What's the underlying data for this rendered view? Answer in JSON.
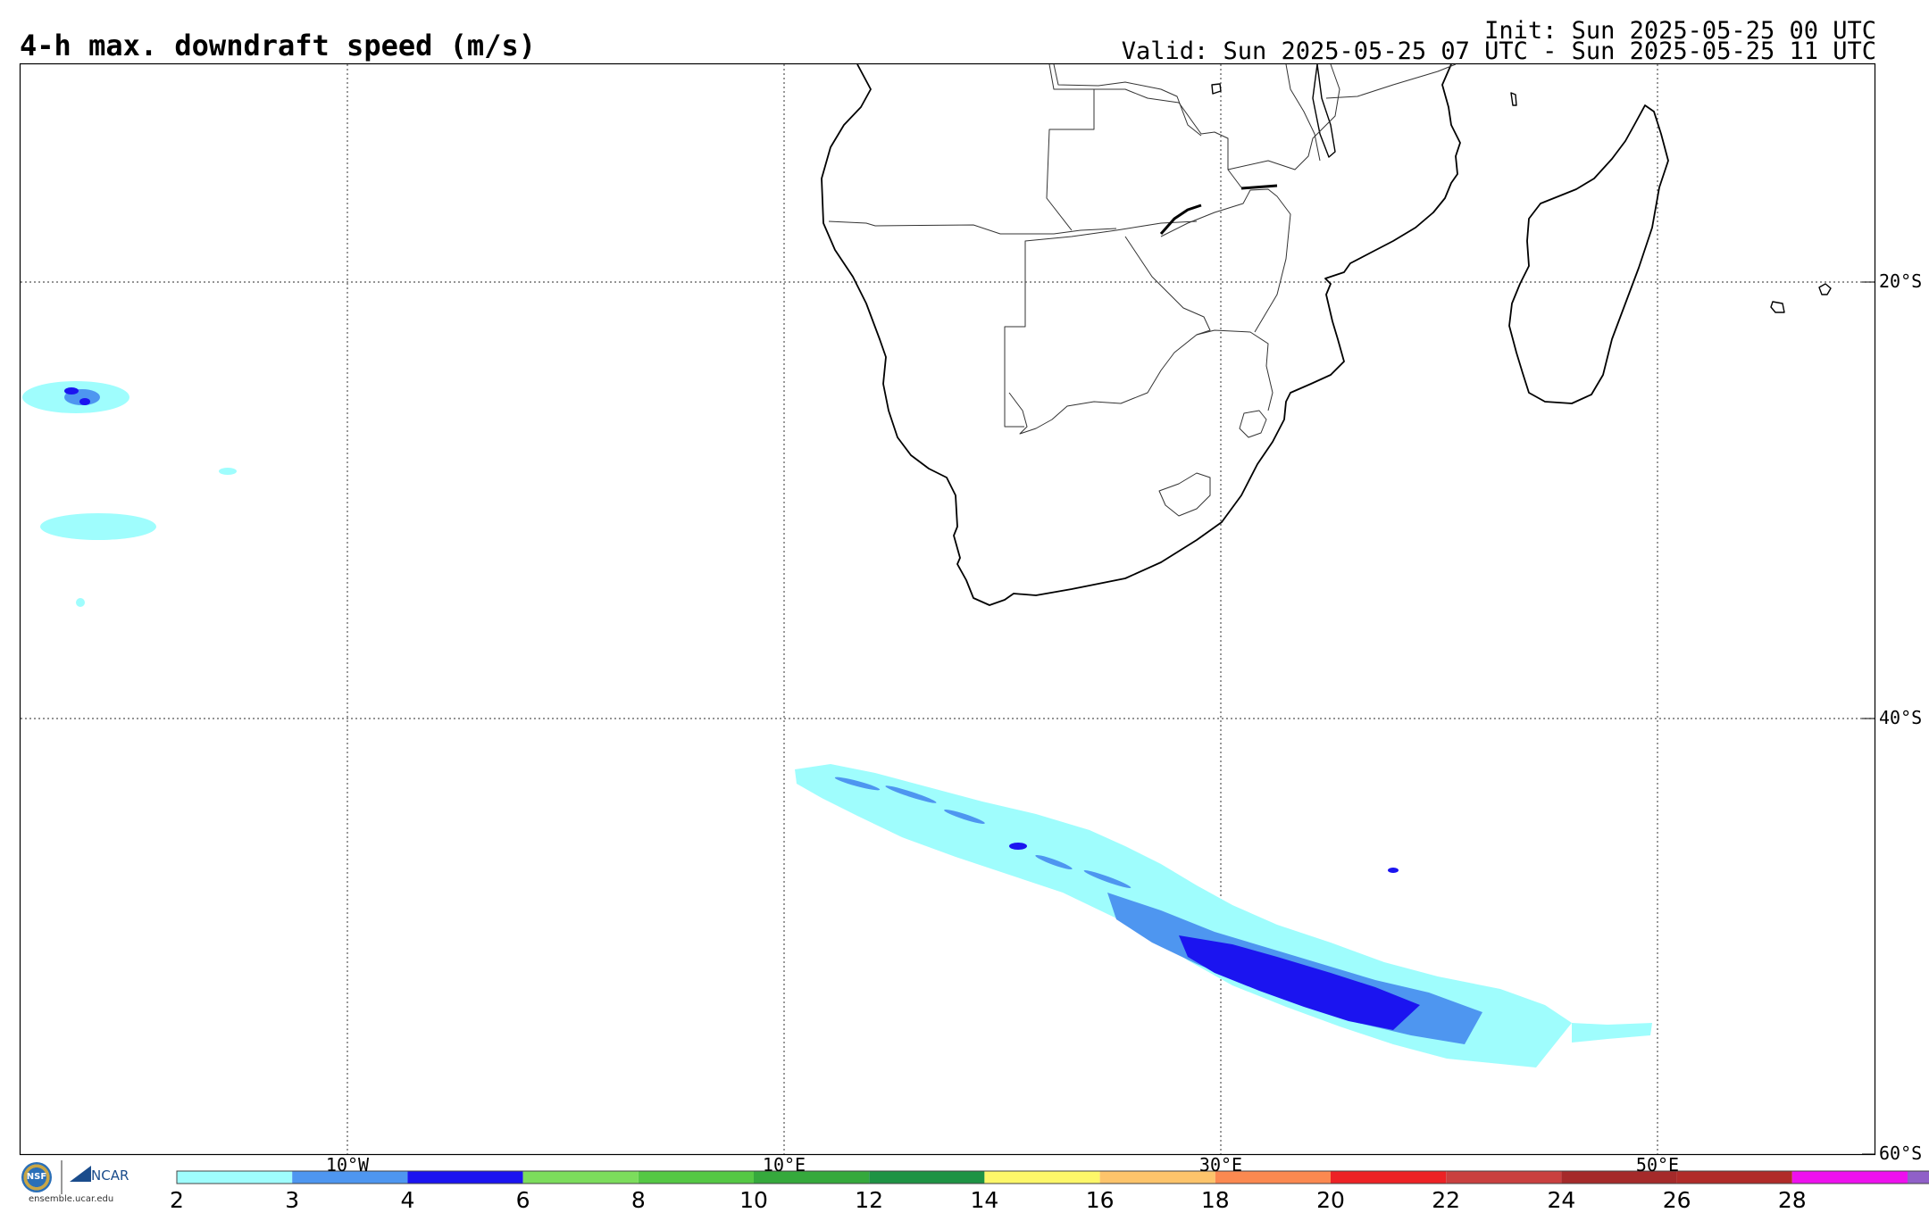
{
  "header": {
    "title": "4-h max. downdraft speed (m/s)",
    "init": "Init: Sun 2025-05-25 00 UTC",
    "valid": "Valid: Sun 2025-05-25 07 UTC - Sun 2025-05-25 11 UTC"
  },
  "map": {
    "lon_range": [
      -17.5,
      67.5
    ],
    "lat_range": [
      -10.0,
      -60.0
    ],
    "projection": "cylindrical",
    "grid": "dotted",
    "lat_lines": [
      -20,
      -40,
      -60
    ],
    "lon_lines": [
      -10,
      10,
      30,
      50
    ],
    "lat_labels": [
      "20°S",
      "40°S",
      "60°S"
    ],
    "lon_labels": [
      "10°W",
      "10°E",
      "30°E",
      "50°E"
    ]
  },
  "colorbar": {
    "bins": [
      {
        "color": "#9ffdfd"
      },
      {
        "color": "#4e96f0"
      },
      {
        "color": "#1b14f0"
      },
      {
        "color": "#7cdd5c"
      },
      {
        "color": "#55c844"
      },
      {
        "color": "#35a93c"
      },
      {
        "color": "#1e9344"
      },
      {
        "color": "#fdf769"
      },
      {
        "color": "#fdc46b"
      },
      {
        "color": "#fb8950"
      },
      {
        "color": "#ed2225"
      },
      {
        "color": "#c9403f"
      },
      {
        "color": "#a52a2a"
      },
      {
        "color": "#b02b29"
      },
      {
        "color": "#ee10ee"
      },
      {
        "color": "#9060c8"
      }
    ],
    "tick_labels": [
      "2",
      "3",
      "4",
      "6",
      "8",
      "10",
      "12",
      "14",
      "16",
      "18",
      "20",
      "22",
      "24",
      "26",
      "28"
    ]
  },
  "logos": {
    "nsf": "NSF",
    "ncar": "NCAR",
    "website": "ensemble.ucar.edu"
  }
}
